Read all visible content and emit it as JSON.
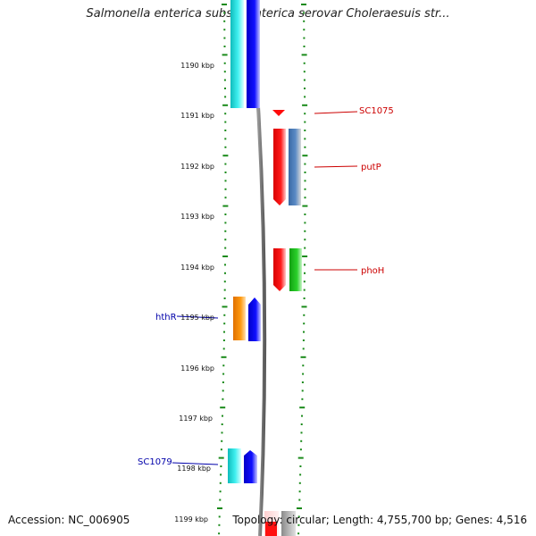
{
  "header": {
    "title": "Salmonella enterica subsp. enterica serovar Choleraesuis str..."
  },
  "footer": {
    "accession": "Accession: NC_006905",
    "summary": "Topology: circular; Length: 4,755,700 bp; Genes: 4,516"
  },
  "map": {
    "scale_labels": [
      "1190 kbp",
      "1191 kbp",
      "1192 kbp",
      "1193 kbp",
      "1194 kbp",
      "1195 kbp",
      "1196 kbp",
      "1197 kbp",
      "1198 kbp",
      "1199 kbp"
    ],
    "gene_labels": [
      {
        "text": "SC1075",
        "color": "#cc0000"
      },
      {
        "text": "putP",
        "color": "#cc0000"
      },
      {
        "text": "phoH",
        "color": "#cc0000"
      },
      {
        "text": "hthR",
        "color": "#0000aa"
      },
      {
        "text": "SC1079",
        "color": "#0000aa"
      }
    ],
    "colors": {
      "cyan": "#19e0e0",
      "blue": "#0a0aee",
      "red": "#ff0a0a",
      "steel": "#4a7ab5",
      "green": "#22c022",
      "orange": "#ff8c00",
      "ticks": "#1a8a1a",
      "backbone": "#777777"
    }
  }
}
